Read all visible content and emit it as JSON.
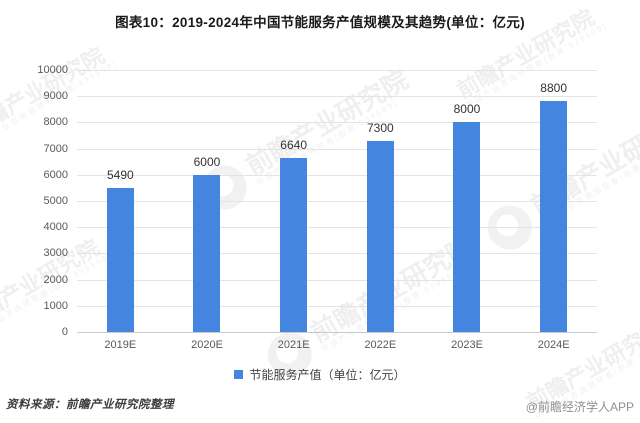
{
  "title": "图表10：2019-2024年中国节能服务产值规模及其趋势(单位：亿元)",
  "chart_data": {
    "type": "bar",
    "categories": [
      "2019E",
      "2020E",
      "2021E",
      "2022E",
      "2023E",
      "2024E"
    ],
    "values": [
      5490,
      6000,
      6640,
      7300,
      8000,
      8800
    ],
    "series_name": "节能服务产值（单位：亿元）",
    "title": "图表10：2019-2024年中国节能服务产值规模及其趋势(单位：亿元)",
    "xlabel": "",
    "ylabel": "",
    "ylim": [
      0,
      10000
    ],
    "yticks": [
      0,
      1000,
      2000,
      3000,
      4000,
      5000,
      6000,
      7000,
      8000,
      9000,
      10000
    ],
    "grid": true,
    "data_labels": true,
    "legend_position": "bottom",
    "bar_color": "#4486df"
  },
  "legend": {
    "label": "节能服务产值（单位：亿元）"
  },
  "footer": {
    "source": "资料来源：前瞻产业研究院整理",
    "brand": "@前瞻经济学人APP"
  },
  "watermark": {
    "text": "前瞻产业研究院",
    "subtext": "中国产业咨询领导者(股票:839599)"
  },
  "colors": {
    "bar": "#4486df",
    "gridline": "#e4e4e4",
    "axis": "#c9c9c9"
  }
}
